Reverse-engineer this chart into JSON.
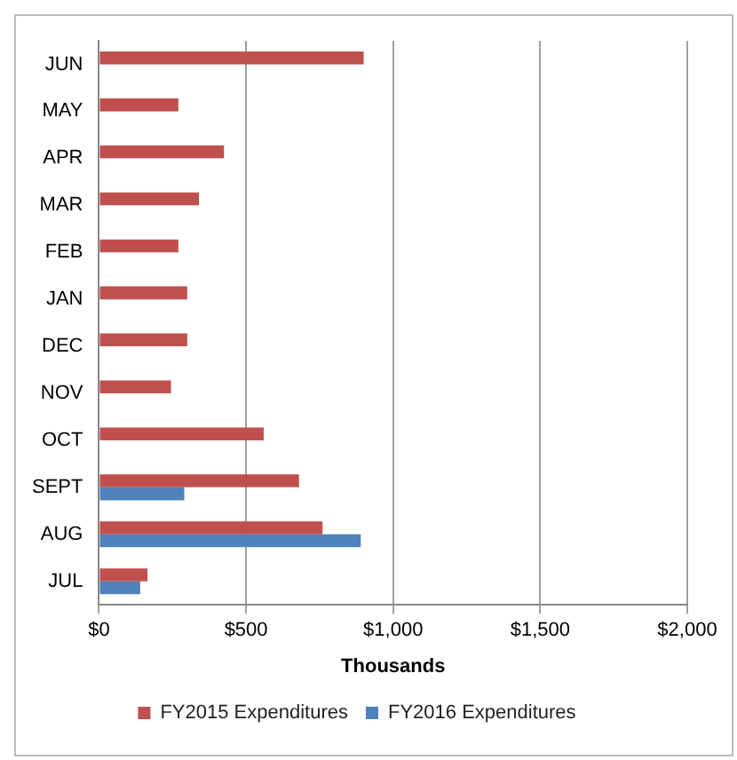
{
  "chart_data": {
    "type": "bar",
    "orientation": "horizontal",
    "xlabel": "Thousands",
    "categories": [
      "JUN",
      "MAY",
      "APR",
      "MAR",
      "FEB",
      "JAN",
      "DEC",
      "NOV",
      "OCT",
      "SEPT",
      "AUG",
      "JUL"
    ],
    "series": [
      {
        "name": "FY2015 Expenditures",
        "color": "#c0504d",
        "values": [
          900,
          270,
          425,
          340,
          270,
          300,
          300,
          245,
          560,
          680,
          760,
          165
        ]
      },
      {
        "name": "FY2016 Expenditures",
        "color": "#4f81bd",
        "values": [
          null,
          null,
          null,
          null,
          null,
          null,
          null,
          null,
          null,
          290,
          890,
          140
        ]
      }
    ],
    "xlim": [
      0,
      2000
    ],
    "xticks": [
      {
        "value": 0,
        "label": "$0"
      },
      {
        "value": 500,
        "label": "$500"
      },
      {
        "value": 1000,
        "label": "$1,000"
      },
      {
        "value": 1500,
        "label": "$1,500"
      },
      {
        "value": 2000,
        "label": "$2,000"
      }
    ],
    "grid": "x",
    "legend": "bottom"
  }
}
